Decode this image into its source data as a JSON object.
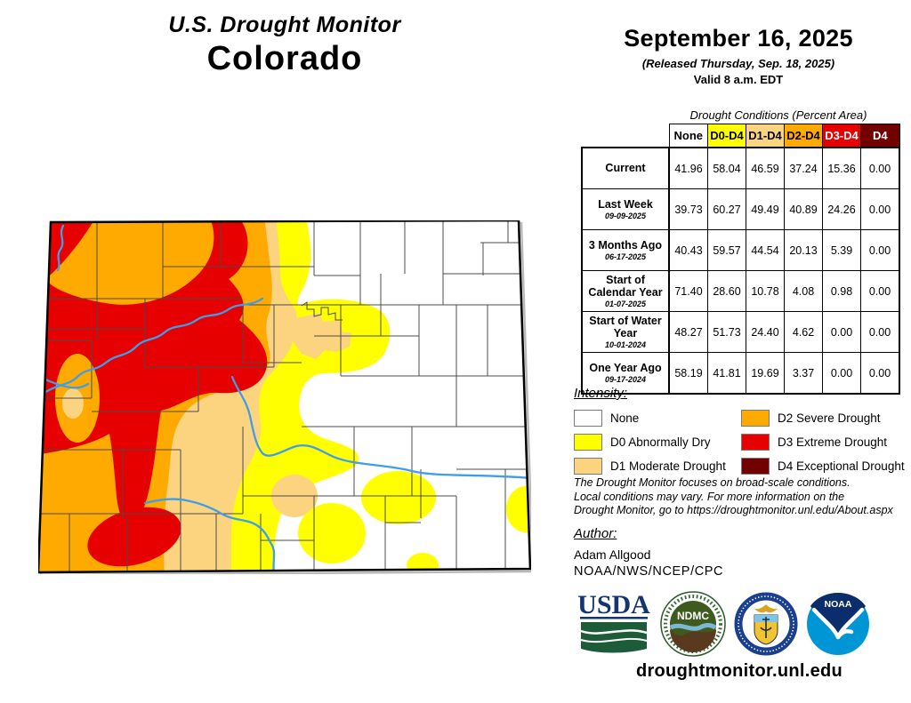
{
  "title": {
    "line1": "U.S. Drought Monitor",
    "line2": "Colorado"
  },
  "masthead": {
    "date": "September 16, 2025",
    "released": "(Released Thursday, Sep. 18, 2025)",
    "valid": "Valid 8 a.m. EDT"
  },
  "table": {
    "caption": "Drought Conditions (Percent Area)",
    "columns": [
      {
        "label": "None",
        "bg": "#FFFFFF",
        "fg": "#000000"
      },
      {
        "label": "D0-D4",
        "bg": "#FFFF00",
        "fg": "#000000"
      },
      {
        "label": "D1-D4",
        "bg": "#FCD37F",
        "fg": "#000000"
      },
      {
        "label": "D2-D4",
        "bg": "#FFAA00",
        "fg": "#000000"
      },
      {
        "label": "D3-D4",
        "bg": "#E60000",
        "fg": "#FFFFFF"
      },
      {
        "label": "D4",
        "bg": "#730000",
        "fg": "#FFFFFF"
      }
    ],
    "rows": [
      {
        "label": "Current",
        "date": "",
        "values": [
          "41.96",
          "58.04",
          "46.59",
          "37.24",
          "15.36",
          "0.00"
        ]
      },
      {
        "label": "Last Week",
        "date": "09-09-2025",
        "values": [
          "39.73",
          "60.27",
          "49.49",
          "40.89",
          "24.26",
          "0.00"
        ]
      },
      {
        "label": "3 Months Ago",
        "date": "06-17-2025",
        "values": [
          "40.43",
          "59.57",
          "44.54",
          "20.13",
          "5.39",
          "0.00"
        ]
      },
      {
        "label": "Start of Calendar Year",
        "date": "01-07-2025",
        "values": [
          "71.40",
          "28.60",
          "10.78",
          "4.08",
          "0.98",
          "0.00"
        ]
      },
      {
        "label": "Start of Water Year",
        "date": "10-01-2024",
        "values": [
          "48.27",
          "51.73",
          "24.40",
          "4.62",
          "0.00",
          "0.00"
        ]
      },
      {
        "label": "One Year Ago",
        "date": "09-17-2024",
        "values": [
          "58.19",
          "41.81",
          "19.69",
          "3.37",
          "0.00",
          "0.00"
        ]
      }
    ]
  },
  "legend": {
    "title": "Intensity:",
    "items": [
      {
        "label": "None",
        "color": "#FFFFFF"
      },
      {
        "label": "D0 Abnormally Dry",
        "color": "#FFFF00"
      },
      {
        "label": "D1 Moderate Drought",
        "color": "#FCD37F"
      },
      {
        "label": "D2 Severe Drought",
        "color": "#FFAA00"
      },
      {
        "label": "D3 Extreme Drought",
        "color": "#E60000"
      },
      {
        "label": "D4 Exceptional Drought",
        "color": "#730000"
      }
    ]
  },
  "disclaimer": "The Drought Monitor focuses on broad-scale conditions.\nLocal conditions may vary. For more information on the\nDrought Monitor, go to https://droughtmonitor.unl.edu/About.aspx",
  "author": {
    "title": "Author:",
    "name": "Adam Allgood",
    "org": "NOAA/NWS/NCEP/CPC"
  },
  "logos": [
    {
      "label": "USDA"
    },
    {
      "label": "NDMC"
    },
    {
      "label": ""
    },
    {
      "label": "NOAA"
    }
  ],
  "footer": {
    "url": "droughtmonitor.unl.edu"
  },
  "map_colors": {
    "none": "#FFFFFF",
    "d0": "#FFFF00",
    "d1": "#FCD37F",
    "d2": "#FFAA00",
    "d3": "#E60000",
    "d4": "#730000",
    "river": "#3E9EEB"
  }
}
